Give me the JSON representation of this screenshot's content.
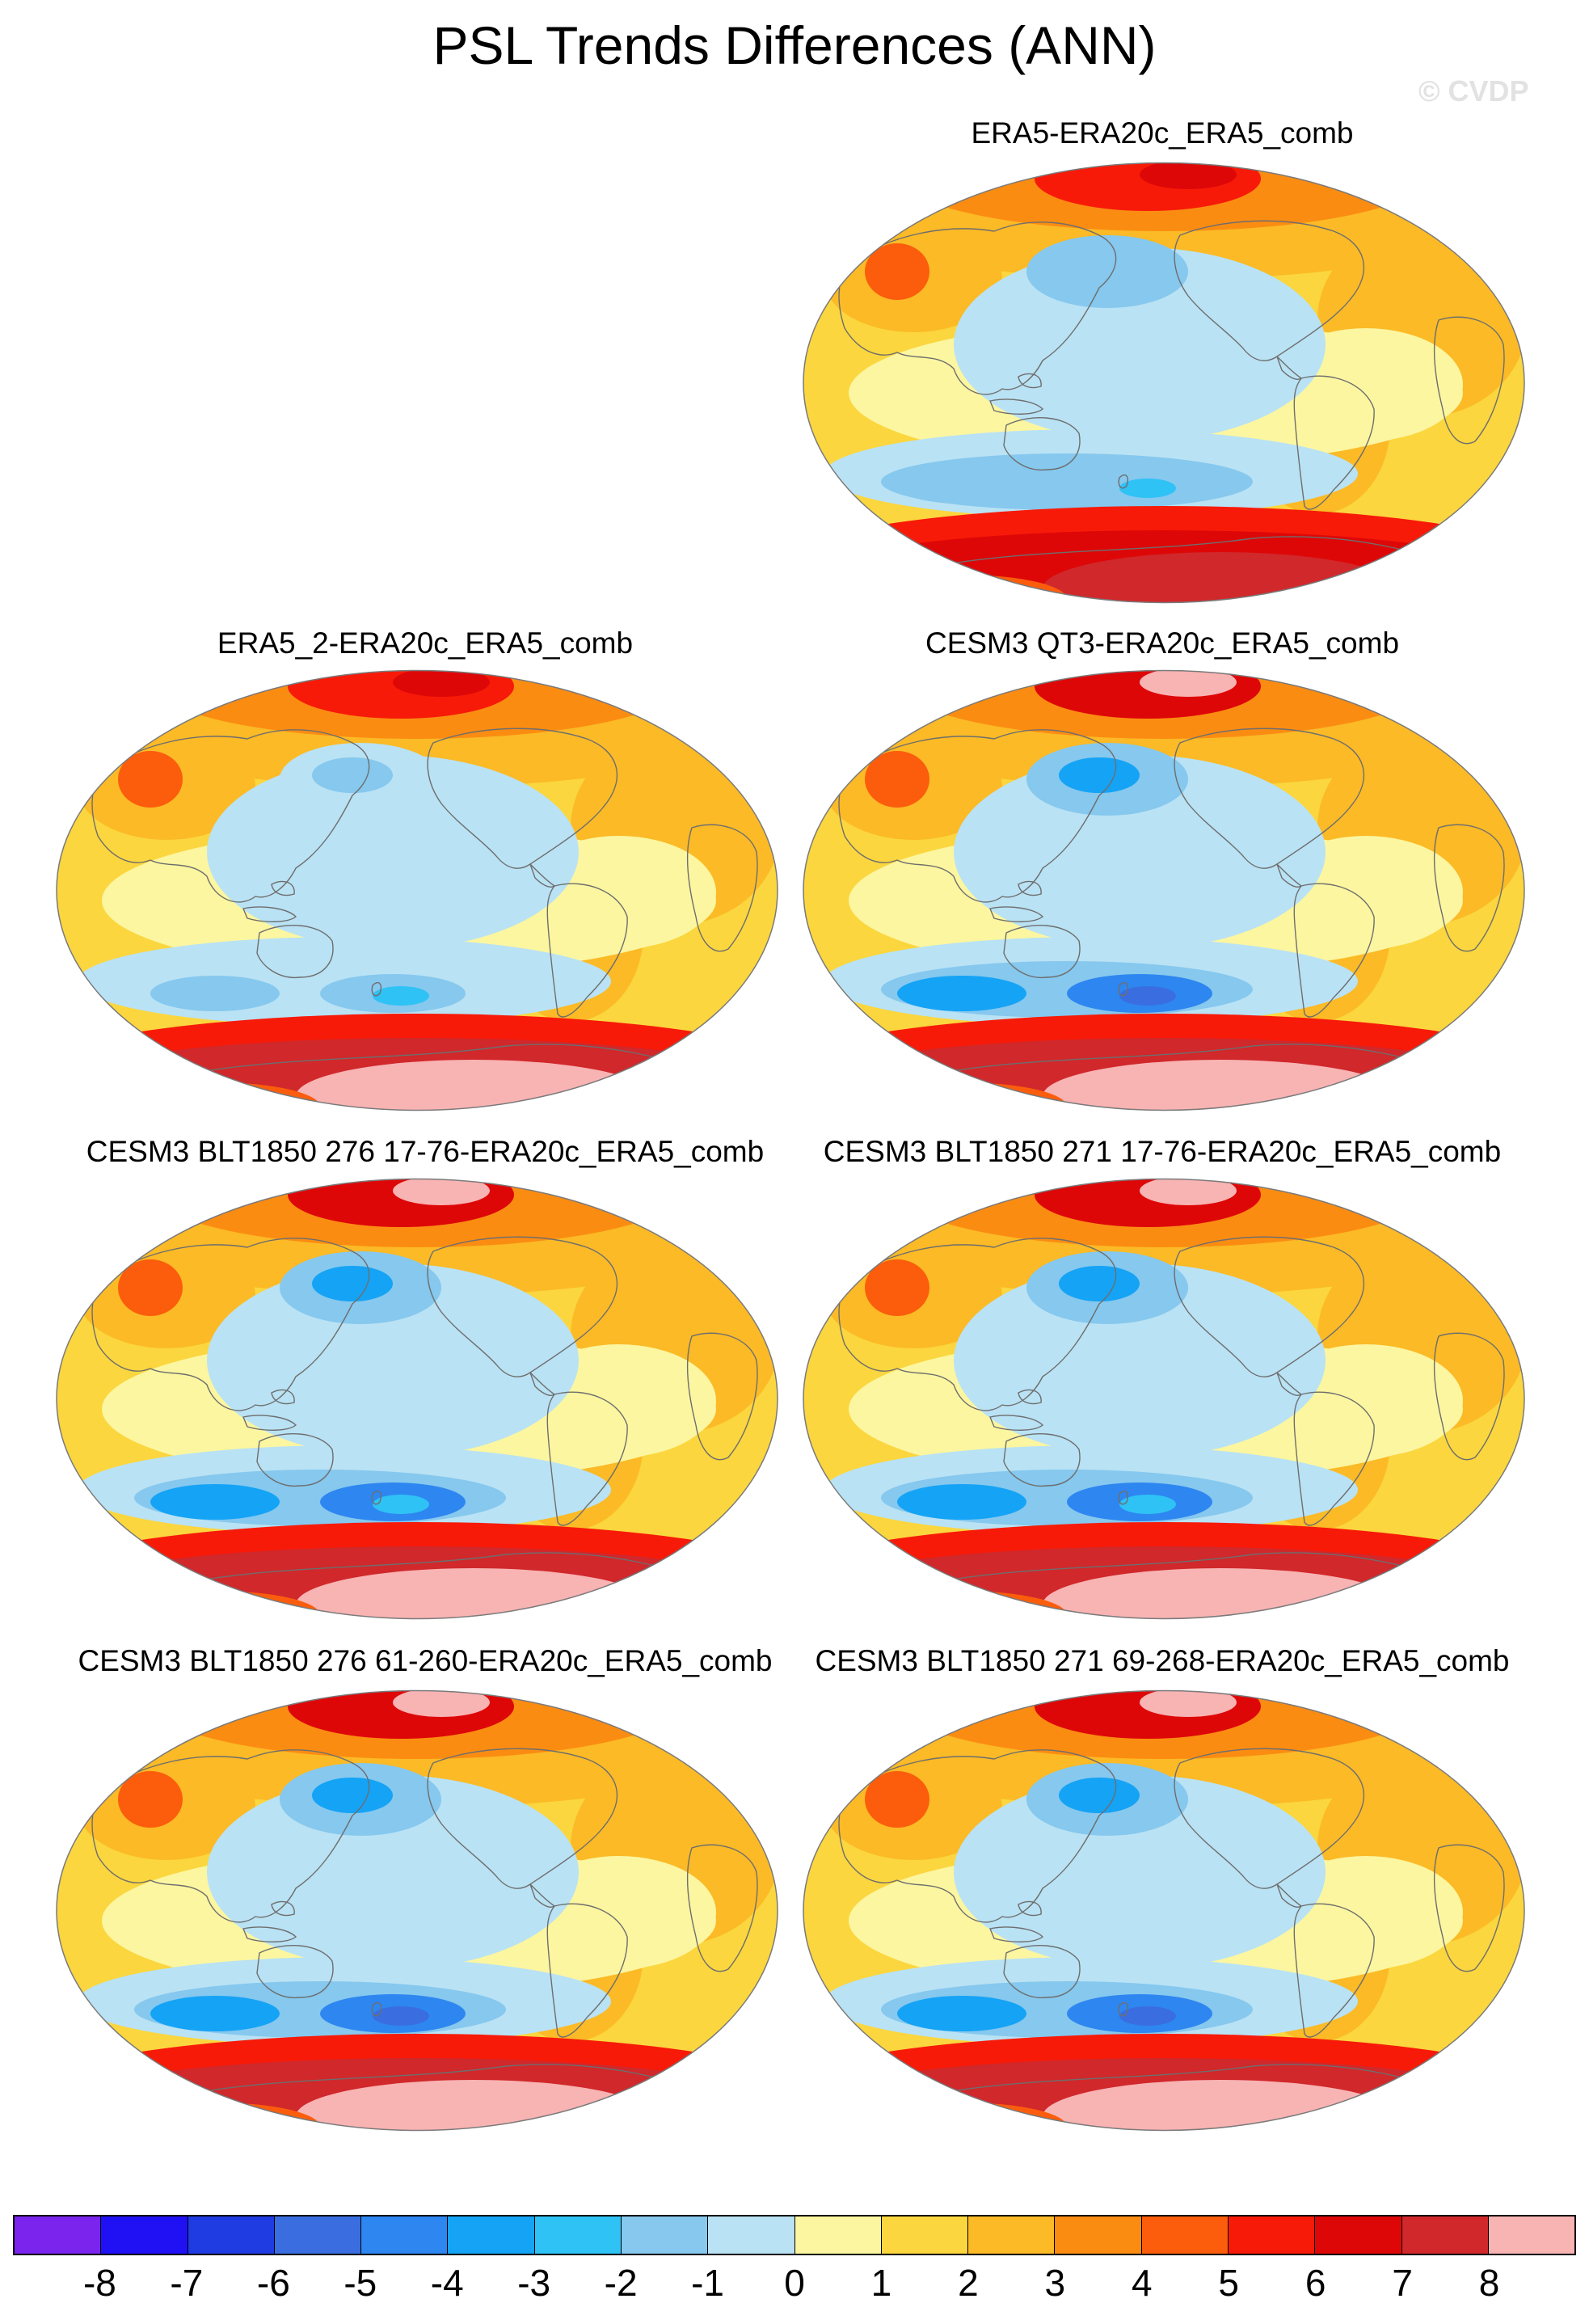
{
  "title": "PSL Trends Differences (ANN)",
  "watermark": "© CVDP",
  "panels": [
    {
      "id": "p1",
      "title": "ERA5-ERA20c_ERA5_comb",
      "south_intensity": 0.65,
      "pacific_low": 0.5
    },
    {
      "id": "p2",
      "title": "ERA5_2-ERA20c_ERA5_comb",
      "south_intensity": 0.85,
      "pacific_low": 0.35
    },
    {
      "id": "p3",
      "title": "CESM3 QT3-ERA20c_ERA5_comb",
      "south_intensity": 1.0,
      "pacific_low": 0.9
    },
    {
      "id": "p4",
      "title": "CESM3 BLT1850 276 17-76-ERA20c_ERA5_comb",
      "south_intensity": 1.0,
      "pacific_low": 0.8
    },
    {
      "id": "p5",
      "title": "CESM3 BLT1850 271 17-76-ERA20c_ERA5_comb",
      "south_intensity": 1.0,
      "pacific_low": 0.8
    },
    {
      "id": "p6",
      "title": "CESM3 BLT1850 276 61-260-ERA20c_ERA5_comb",
      "south_intensity": 1.0,
      "pacific_low": 0.85
    },
    {
      "id": "p7",
      "title": "CESM3 BLT1850 271 69-268-ERA20c_ERA5_comb",
      "south_intensity": 1.0,
      "pacific_low": 0.85
    }
  ],
  "colorbar": {
    "labels": [
      "-8",
      "-7",
      "-6",
      "-5",
      "-4",
      "-3",
      "-2",
      "-1",
      "0",
      "1",
      "2",
      "3",
      "4",
      "5",
      "6",
      "7",
      "8"
    ],
    "colors": [
      "#7b24ee",
      "#2011f5",
      "#1f3be2",
      "#3a6ee0",
      "#2e86f0",
      "#15a3f5",
      "#2fc2f5",
      "#86c8ee",
      "#b9e2f4",
      "#fcf6a0",
      "#fbd63e",
      "#fbba26",
      "#fb8c12",
      "#fb5d0c",
      "#f71a08",
      "#de0708",
      "#d0282b",
      "#f8b3b3"
    ]
  }
}
